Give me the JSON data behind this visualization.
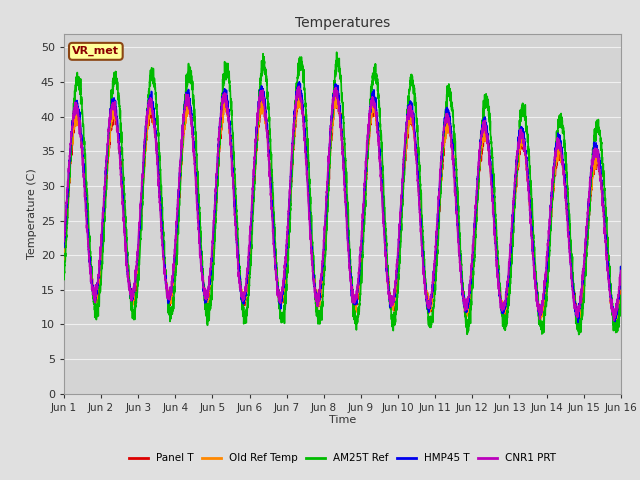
{
  "title": "Temperatures",
  "xlabel": "Time",
  "ylabel": "Temperature (C)",
  "ylim": [
    0,
    52
  ],
  "yticks": [
    0,
    5,
    10,
    15,
    20,
    25,
    30,
    35,
    40,
    45,
    50
  ],
  "background_color": "#e0e0e0",
  "plot_bg_color": "#d4d4d4",
  "grid_color": "#f0f0f0",
  "annotation_text": "VR_met",
  "annotation_bg": "#ffff99",
  "annotation_border": "#8B4513",
  "legend_entries": [
    "Panel T",
    "Old Ref Temp",
    "AM25T Ref",
    "HMP45 T",
    "CNR1 PRT"
  ],
  "line_colors": [
    "#dd0000",
    "#ff8800",
    "#00bb00",
    "#0000ee",
    "#bb00bb"
  ],
  "line_widths": [
    1.0,
    1.0,
    1.2,
    1.2,
    1.2
  ],
  "num_days": 15,
  "points_per_day": 288,
  "xtick_labels": [
    "Jun 1",
    "Jun 2",
    "Jun 3",
    "Jun 4",
    "Jun 5",
    "Jun 6",
    "Jun 7",
    "Jun 8",
    "Jun 9",
    "Jun 10",
    "Jun 11",
    "Jun 12",
    "Jun 13",
    "Jun 14",
    "Jun 15",
    "Jun 16"
  ]
}
